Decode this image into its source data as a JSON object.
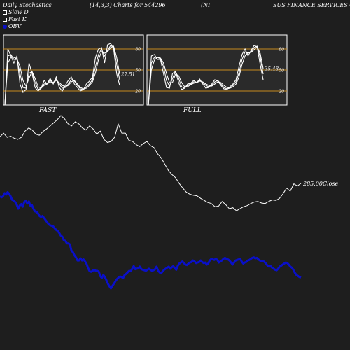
{
  "header": {
    "title": "Daily Stochastics",
    "params": "(14,3,3) Charts for 544296",
    "symbol": "(NI",
    "company": "SUS FINANCE SERVICES CO LI"
  },
  "legend": {
    "slow_d": "Slow  D",
    "fast_k": "Fast K",
    "obv": "OBV"
  },
  "colors": {
    "background": "#1e1e1e",
    "panel": "#2a2a2a",
    "panel_border": "#ffffff",
    "guide_line": "#c68a1e",
    "stoch_line": "#ffffff",
    "obv": "#0a10c8",
    "close": "#ffffff"
  },
  "chart_data": [
    {
      "type": "line",
      "panel": "FAST",
      "ylim": [
        0,
        100
      ],
      "y_ticks": [
        "80",
        "50",
        "20"
      ],
      "reference_lines": [
        80,
        50,
        20
      ],
      "last_value_label": "27.51",
      "series": [
        {
          "name": "",
          "values": [
            0,
            80,
            70,
            60,
            70,
            30,
            18,
            22,
            60,
            45,
            25,
            20,
            24,
            35,
            30,
            38,
            30,
            40,
            25,
            20,
            28,
            35,
            40,
            30,
            25,
            20,
            22,
            30,
            34,
            40,
            68,
            80,
            82,
            60,
            86,
            88,
            80,
            45,
            28
          ]
        },
        {
          "name": "",
          "values": [
            0,
            70,
            72,
            65,
            65,
            45,
            25,
            24,
            45,
            48,
            32,
            22,
            24,
            30,
            31,
            35,
            32,
            37,
            30,
            24,
            25,
            30,
            36,
            34,
            28,
            23,
            22,
            26,
            30,
            36,
            55,
            72,
            80,
            70,
            78,
            85,
            83,
            58,
            36
          ]
        },
        {
          "name": "",
          "values": [
            0,
            60,
            68,
            68,
            66,
            55,
            35,
            27,
            38,
            48,
            38,
            26,
            24,
            28,
            30,
            33,
            32,
            35,
            32,
            28,
            26,
            28,
            33,
            35,
            30,
            25,
            23,
            24,
            28,
            33,
            46,
            65,
            76,
            74,
            76,
            82,
            84,
            68,
            44
          ]
        }
      ]
    },
    {
      "type": "line",
      "panel": "FULL",
      "ylim": [
        0,
        100
      ],
      "y_ticks": [
        "80",
        "50",
        "20"
      ],
      "reference_lines": [
        80,
        50,
        20
      ],
      "last_value_label": "35.48",
      "series": [
        {
          "name": "",
          "values": [
            0,
            70,
            72,
            65,
            65,
            45,
            25,
            24,
            45,
            48,
            32,
            22,
            24,
            30,
            31,
            35,
            32,
            37,
            30,
            24,
            25,
            30,
            36,
            34,
            28,
            23,
            22,
            26,
            30,
            36,
            55,
            72,
            80,
            70,
            78,
            85,
            83,
            58,
            36
          ]
        },
        {
          "name": "",
          "values": [
            0,
            60,
            68,
            68,
            66,
            55,
            35,
            27,
            38,
            48,
            38,
            26,
            24,
            28,
            30,
            33,
            32,
            35,
            32,
            28,
            26,
            28,
            33,
            35,
            30,
            25,
            23,
            24,
            28,
            33,
            46,
            65,
            76,
            74,
            76,
            82,
            84,
            68,
            44
          ]
        },
        {
          "name": "",
          "values": [
            0,
            50,
            64,
            68,
            67,
            60,
            45,
            32,
            32,
            44,
            42,
            32,
            26,
            26,
            29,
            31,
            32,
            34,
            33,
            30,
            28,
            27,
            30,
            33,
            32,
            28,
            25,
            24,
            26,
            30,
            40,
            58,
            70,
            75,
            75,
            79,
            83,
            74,
            52
          ]
        }
      ]
    },
    {
      "type": "line",
      "panel": "OBV / Close",
      "close_label": "285.00Close",
      "series": [
        {
          "name": "OBV",
          "values": [
            190,
            188,
            190,
            196,
            193,
            198,
            195,
            190,
            183,
            182,
            179,
            174,
            166,
            172,
            175,
            170,
            179,
            181,
            176,
            180,
            172,
            173,
            166,
            161,
            160,
            157,
            152,
            150,
            152,
            148,
            144,
            140,
            136,
            134,
            133,
            132,
            128,
            125,
            123,
            119,
            114,
            112,
            105,
            104,
            99,
            99,
            97,
            85,
            82,
            76,
            72,
            66,
            66,
            70,
            66,
            68,
            64,
            59,
            51,
            45,
            44,
            46,
            48,
            46,
            46,
            44,
            36,
            32,
            38,
            34,
            28,
            21,
            16,
            12,
            17,
            21,
            26,
            30,
            33,
            35,
            34,
            32,
            38,
            40,
            43,
            46,
            45,
            50,
            55,
            49,
            50,
            51,
            54,
            49,
            48,
            47,
            46,
            48,
            50,
            48,
            46,
            47,
            49,
            54,
            46,
            43,
            41,
            45,
            48,
            50,
            52,
            54,
            50,
            53,
            55,
            51,
            48,
            56,
            60,
            62,
            64,
            61,
            58,
            57,
            60,
            62,
            63,
            66,
            64,
            61,
            62,
            63,
            66,
            63,
            61,
            62,
            58,
            60,
            66,
            69,
            68,
            67,
            69,
            67,
            62,
            64,
            66,
            69,
            71,
            69,
            68,
            66,
            62,
            58,
            62,
            66,
            67,
            68,
            69,
            64,
            60,
            62,
            63,
            66,
            67,
            69,
            71,
            72,
            70,
            71,
            68,
            66,
            64,
            65,
            63,
            60,
            56,
            54,
            55,
            52,
            50,
            48,
            47,
            50,
            54,
            56,
            58,
            60,
            62,
            61,
            58,
            54,
            52,
            48,
            42,
            38,
            36,
            34,
            33
          ]
        },
        {
          "name": "Close",
          "values": [
            305,
            312,
            304,
            306,
            302,
            300,
            304,
            316,
            322,
            318,
            310,
            308,
            315,
            320,
            326,
            332,
            338,
            346,
            340,
            330,
            326,
            334,
            330,
            322,
            318,
            326,
            320,
            310,
            316,
            300,
            294,
            296,
            304,
            330,
            312,
            312,
            298,
            296,
            290,
            286,
            292,
            296,
            288,
            284,
            272,
            264,
            252,
            240,
            232,
            226,
            215,
            206,
            198,
            194,
            192,
            191,
            186,
            182,
            178,
            176,
            170,
            171,
            180,
            174,
            166,
            168,
            162,
            166,
            170,
            172,
            176,
            179,
            180,
            177,
            176,
            180,
            183,
            182,
            186,
            195,
            206,
            200,
            214,
            210,
            215
          ]
        }
      ]
    }
  ]
}
